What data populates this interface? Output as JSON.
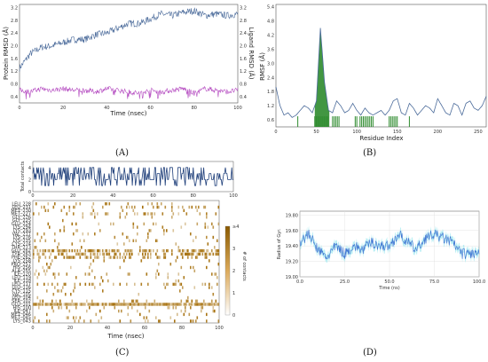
{
  "panels": [
    "(A)",
    "(B)",
    "(C)",
    "(D)"
  ],
  "chart_data": [
    {
      "type": "line",
      "panel": "A",
      "xlabel": "Time (nsec)",
      "ylabel_left": "Protein RMSD (Å)",
      "ylabel_right": "Ligand RMSD (Å)",
      "xlim": [
        0,
        100
      ],
      "xticks": [
        "0",
        "20",
        "40",
        "60",
        "80",
        "100"
      ],
      "yticks_left": [
        "0.4",
        "0.8",
        "1.2",
        "1.6",
        "2.0",
        "2.4",
        "2.8",
        "3.2"
      ],
      "yticks_right": [
        "0.4",
        "0.8",
        "1.2",
        "1.6",
        "2.0",
        "2.4",
        "2.8",
        "3.2"
      ],
      "ylim": [
        0.2,
        3.3
      ],
      "colors": {
        "protein": "#4a6a9a",
        "ligand": "#b44ac0"
      },
      "series": [
        {
          "name": "Protein",
          "x": [
            0,
            5,
            10,
            15,
            20,
            25,
            30,
            35,
            40,
            45,
            50,
            55,
            60,
            65,
            70,
            75,
            80,
            85,
            90,
            95,
            100
          ],
          "values": [
            1.3,
            1.75,
            1.95,
            2.0,
            2.1,
            2.2,
            2.2,
            2.35,
            2.4,
            2.55,
            2.7,
            2.7,
            2.85,
            3.0,
            2.95,
            3.05,
            3.1,
            2.95,
            3.0,
            2.95,
            3.0
          ]
        },
        {
          "name": "Ligand",
          "x": [
            0,
            5,
            10,
            15,
            20,
            25,
            30,
            35,
            40,
            45,
            50,
            55,
            60,
            65,
            70,
            75,
            80,
            85,
            90,
            95,
            100
          ],
          "values": [
            0.6,
            0.55,
            0.65,
            0.6,
            0.65,
            0.6,
            0.6,
            0.55,
            0.65,
            0.6,
            0.55,
            0.5,
            0.6,
            0.55,
            0.6,
            0.65,
            0.5,
            0.65,
            0.6,
            0.55,
            0.6
          ]
        }
      ]
    },
    {
      "type": "line",
      "panel": "B",
      "xlabel": "Residue Index",
      "ylabel": "RMSF (Å)",
      "xlim": [
        0,
        260
      ],
      "ylim": [
        0.3,
        5.5
      ],
      "xticks": [
        "0",
        "50",
        "100",
        "150",
        "200",
        "250"
      ],
      "yticks": [
        "0.6",
        "1.2",
        "1.8",
        "2.4",
        "3.0",
        "3.6",
        "4.2",
        "4.8",
        "5.4"
      ],
      "colors": {
        "line": "#4a6a9a",
        "contacts": "#2e8b2e"
      },
      "x": [
        0,
        5,
        10,
        15,
        20,
        25,
        30,
        35,
        40,
        45,
        50,
        55,
        60,
        65,
        70,
        75,
        80,
        85,
        90,
        95,
        100,
        105,
        110,
        115,
        120,
        125,
        130,
        135,
        140,
        145,
        150,
        155,
        160,
        165,
        170,
        175,
        180,
        185,
        190,
        195,
        200,
        205,
        210,
        215,
        220,
        225,
        230,
        235,
        240,
        245,
        250,
        255,
        260
      ],
      "values": [
        2.0,
        1.2,
        0.8,
        0.9,
        0.7,
        0.8,
        1.0,
        1.2,
        1.1,
        0.9,
        1.4,
        4.5,
        2.2,
        1.0,
        0.9,
        1.4,
        1.2,
        0.9,
        1.0,
        1.3,
        1.0,
        0.8,
        1.1,
        0.9,
        0.8,
        0.9,
        1.0,
        0.8,
        1.0,
        1.4,
        1.5,
        0.9,
        0.8,
        1.3,
        1.1,
        0.8,
        1.0,
        1.2,
        1.1,
        0.9,
        1.5,
        1.2,
        0.9,
        0.8,
        1.3,
        1.2,
        0.8,
        1.3,
        1.4,
        1.1,
        1.0,
        1.2,
        1.6
      ],
      "contact_residues": [
        27,
        48,
        50,
        52,
        54,
        56,
        58,
        60,
        62,
        64,
        70,
        72,
        74,
        76,
        78,
        98,
        100,
        104,
        106,
        108,
        110,
        112,
        114,
        116,
        118,
        120,
        140,
        142,
        144,
        146,
        148,
        150,
        165
      ]
    },
    {
      "type": "bar",
      "panel": "C-top",
      "ylabel": "Total contacts",
      "xlim": [
        0,
        100
      ],
      "ylim": [
        0,
        5
      ],
      "xticks": [
        "0",
        "20",
        "40",
        "60",
        "80",
        "100"
      ],
      "yticks": [
        "0",
        "2",
        "4"
      ],
      "colors": {
        "bars": "#1f3f7a"
      }
    },
    {
      "type": "heatmap",
      "panel": "C",
      "xlabel": "Time (nsec)",
      "colorbar_label": "# of contacts",
      "colorbar_ticks": [
        "0",
        "1",
        "2",
        "3",
        "≥4"
      ],
      "xticks": [
        "0",
        "20",
        "40",
        "60",
        "80",
        "100"
      ],
      "rows": [
        "LEU_228",
        "LEU_231",
        "MET_230",
        "MET_227",
        "GLY_226",
        "GLY_225",
        "GLU_224",
        "LYS_294",
        "LYS_293",
        "VAL_277",
        "LYS_276",
        "LYS_275",
        "CYS_274",
        "THR_273",
        "GLU_262",
        "TYR_263",
        "PHE_262",
        "LYS_258",
        "PRO_257",
        "HIS_256",
        "ALA_255",
        "ILE_120",
        "LEU_119",
        "ILE_118",
        "LEU_117",
        "LEU_116",
        "CYS_115",
        "VAL_105",
        "LEU_104",
        "SER_102",
        "GLU_101",
        "HIS_100",
        "ILE_047",
        "MET_046",
        "MET_045",
        "LYS_043"
      ],
      "row_colors": [
        "#222222",
        "#222222",
        "#c8003c",
        "#222222",
        "#222222",
        "#222222",
        "#222222",
        "#c8003c",
        "#222222",
        "#222222",
        "#222222",
        "#3aa63a",
        "#222222",
        "#222222",
        "#222222",
        "#222222",
        "#222222",
        "#c8003c",
        "#222222",
        "#222222",
        "#222222",
        "#222222",
        "#222222",
        "#222222",
        "#222222",
        "#222222",
        "#222222",
        "#222222",
        "#222222",
        "#222222",
        "#222222",
        "#222222",
        "#222222",
        "#222222",
        "#222222",
        "#222222"
      ],
      "row_density": [
        0.15,
        0.2,
        0.05,
        0.2,
        0.05,
        0.03,
        0.1,
        0.05,
        0.08,
        0.05,
        0.05,
        0.06,
        0.05,
        0.05,
        0.55,
        0.4,
        0.35,
        0.05,
        0.05,
        0.04,
        0.05,
        0.2,
        0.05,
        0.05,
        0.3,
        0.05,
        0.05,
        0.05,
        0.05,
        0.15,
        0.9,
        0.2,
        0.1,
        0.05,
        0.05,
        0.1
      ],
      "colors": {
        "low": "#ffffff",
        "high": "#a6700c"
      }
    },
    {
      "type": "line",
      "panel": "D",
      "xlabel": "Time (ns)",
      "ylabel": "Radius of Gyr.",
      "xlim": [
        0,
        100
      ],
      "ylim": [
        19.0,
        19.85
      ],
      "xticks": [
        "0.0",
        "25.0",
        "50.0",
        "75.0",
        "100.0"
      ],
      "yticks": [
        "19.00",
        "19.20",
        "19.40",
        "19.60",
        "19.80"
      ],
      "colors": {
        "line": "#3a6fd0",
        "band": "#9ee8f0"
      },
      "x": [
        0,
        5,
        10,
        15,
        20,
        25,
        30,
        35,
        40,
        45,
        50,
        55,
        60,
        65,
        70,
        75,
        80,
        85,
        90,
        95,
        100
      ],
      "values": [
        19.45,
        19.55,
        19.35,
        19.25,
        19.4,
        19.3,
        19.4,
        19.35,
        19.45,
        19.4,
        19.4,
        19.55,
        19.45,
        19.35,
        19.5,
        19.55,
        19.5,
        19.45,
        19.3,
        19.3,
        19.3
      ]
    }
  ]
}
